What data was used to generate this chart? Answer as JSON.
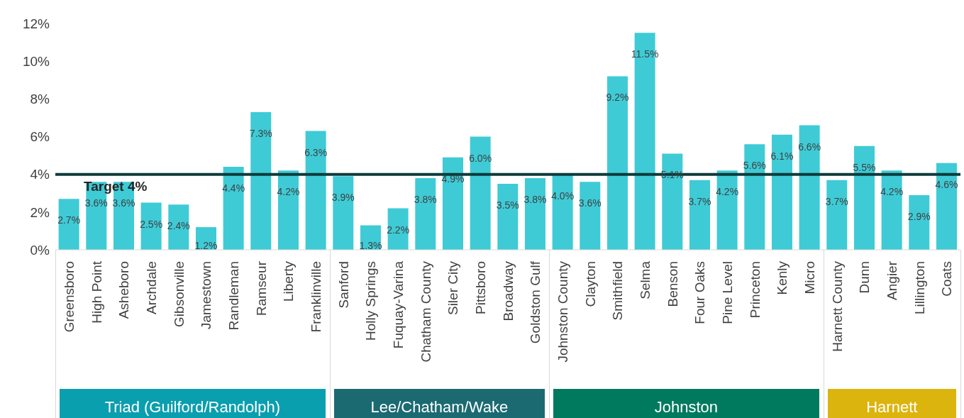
{
  "chart_data": {
    "type": "bar",
    "categories": [
      "Greensboro",
      "High Point",
      "Asheboro",
      "Archdale",
      "Gibsonville",
      "Jamestown",
      "Randleman",
      "Ramseur",
      "Liberty",
      "Franklinville",
      "Sanford",
      "Holly Springs",
      "Fuquay-Varina",
      "Chatham County",
      "Siler City",
      "Pittsboro",
      "Broadway",
      "Goldston Gulf",
      "Johnston County",
      "Clayton",
      "Smithfield",
      "Selma",
      "Benson",
      "Four Oaks",
      "Pine Level",
      "Princeton",
      "Kenly",
      "Micro",
      "Harnett County",
      "Dunn",
      "Angier",
      "Lillington",
      "Coats"
    ],
    "values": [
      2.7,
      3.6,
      3.6,
      2.5,
      2.4,
      1.2,
      4.4,
      7.3,
      4.2,
      6.3,
      3.9,
      1.3,
      2.2,
      3.8,
      4.9,
      6.0,
      3.5,
      3.8,
      4.0,
      3.6,
      9.2,
      11.5,
      5.1,
      3.7,
      4.2,
      5.6,
      6.1,
      6.6,
      3.7,
      5.5,
      4.2,
      2.9,
      4.6
    ],
    "value_labels": [
      "2.7%",
      "3.6%",
      "3.6%",
      "2.5%",
      "2.4%",
      "1.2%",
      "4.4%",
      "7.3%",
      "4.2%",
      "6.3%",
      "3.9%",
      "1.3%",
      "2.2%",
      "3.8%",
      "4.9%",
      "6.0%",
      "3.5%",
      "3.8%",
      "4.0%",
      "3.6%",
      "9.2%",
      "11.5%",
      "5.1%",
      "3.7%",
      "4.2%",
      "5.6%",
      "6.1%",
      "6.6%",
      "3.7%",
      "5.5%",
      "4.2%",
      "2.9%",
      "4.6%"
    ],
    "color": "#3ecbd6",
    "ylim": [
      0,
      12
    ],
    "yticks": [
      {
        "value": 0,
        "label": "0%"
      },
      {
        "value": 2,
        "label": "2%"
      },
      {
        "value": 4,
        "label": "4%"
      },
      {
        "value": 6,
        "label": "6%"
      },
      {
        "value": 8,
        "label": "8%"
      },
      {
        "value": 10,
        "label": "10%"
      },
      {
        "value": 12,
        "label": "12%"
      }
    ],
    "ref_lines": [
      {
        "axis": "y",
        "value": 4,
        "label": "Target 4%",
        "color": "#0d3b3b"
      }
    ],
    "annotations": [
      "Triad (Guilford/Randolph)",
      "Lee/Chatham/Wake",
      "Johnston",
      "Harnett"
    ],
    "grid": false,
    "legend": false
  }
}
